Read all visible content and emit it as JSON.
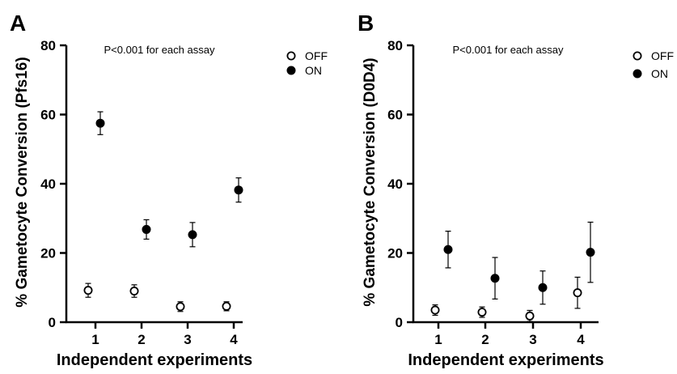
{
  "chart_data": [
    {
      "panel_label": "A",
      "type": "scatter",
      "title": "",
      "annotation": "P<0.001 for each assay",
      "xlabel": "Independent experiments",
      "ylabel": "% Gametocyte Conversion (Pfs16)",
      "categories": [
        "1",
        "2",
        "3",
        "4"
      ],
      "ylim": [
        0,
        80
      ],
      "yticks": [
        "0",
        "20",
        "40",
        "60",
        "80"
      ],
      "legend_position": "top-right",
      "grid": false,
      "series": [
        {
          "name": "OFF",
          "marker": "open-circle",
          "values": [
            9.2,
            9.0,
            4.5,
            4.6
          ],
          "errors": [
            2.0,
            1.8,
            1.4,
            1.3
          ]
        },
        {
          "name": "ON",
          "marker": "filled-circle",
          "values": [
            57.5,
            26.8,
            25.3,
            38.2
          ],
          "errors": [
            3.3,
            2.8,
            3.5,
            3.5
          ]
        }
      ]
    },
    {
      "panel_label": "B",
      "type": "scatter",
      "title": "",
      "annotation": "P<0.001 for each assay",
      "xlabel": "Independent experiments",
      "ylabel": "% Gametocyte Conversion (D0D4)",
      "categories": [
        "1",
        "2",
        "3",
        "4"
      ],
      "ylim": [
        0,
        80
      ],
      "yticks": [
        "0",
        "20",
        "40",
        "60",
        "80"
      ],
      "legend_position": "top-right",
      "grid": false,
      "series": [
        {
          "name": "OFF",
          "marker": "open-circle",
          "values": [
            3.5,
            2.9,
            1.8,
            8.5
          ],
          "errors": [
            1.5,
            1.5,
            1.6,
            4.5
          ]
        },
        {
          "name": "ON",
          "marker": "filled-circle",
          "values": [
            21.0,
            12.7,
            10.0,
            20.2
          ],
          "errors": [
            5.3,
            6.0,
            4.8,
            8.7
          ]
        }
      ]
    }
  ]
}
